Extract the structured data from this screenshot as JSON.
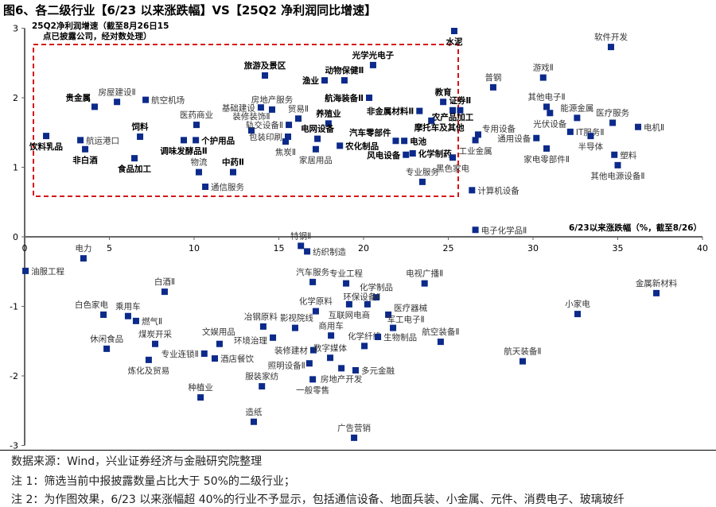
{
  "title": "图6、各二级行业【6/23 以来涨跌幅】VS【25Q2 净利润同比增速】",
  "footer": {
    "source": "数据来源：Wind，兴业证券经济与金融研究院整理",
    "note1": "注 1：筛选当前中报披露数量占比大于 50%的二级行业；",
    "note2": "注 2：为作图效果，6/23 以来涨幅超 40%的行业不予显示，包括通信设备、地面兵装、小金属、元件、消费电子、玻璃玻纤"
  },
  "chart_data": {
    "type": "scatter",
    "ylabel_line1": "25Q2净利润增速（截至8月26日15",
    "ylabel_line2": "点已披露公司，经对数处理）",
    "xlabel": "6/23以来涨跌幅（%，截至8/26）",
    "xlim": [
      0,
      40
    ],
    "ylim": [
      -3,
      3
    ],
    "xticks": [
      "0",
      "5",
      "10",
      "15",
      "20",
      "25",
      "30",
      "35",
      "40"
    ],
    "yticks": [
      "3",
      "2",
      "1",
      "0",
      "-1",
      "-2",
      "-3"
    ],
    "grid": false,
    "colors": {
      "marker": "#0b2a8a",
      "highlight_box": "#d61518"
    },
    "highlight_box": "dashed red rectangle around upper-left cluster",
    "points": [
      {
        "name": "饮料乳品",
        "x": 1.27,
        "y": 1.45,
        "pos": "b",
        "bold": true
      },
      {
        "name": "航运港口",
        "x": 3.29,
        "y": 1.39,
        "pos": "r",
        "bold": false
      },
      {
        "name": "非白酒",
        "x": 3.57,
        "y": 1.26,
        "pos": "b",
        "bold": true
      },
      {
        "name": "贵金属",
        "x": 4.13,
        "y": 1.87,
        "pos": "a",
        "bold": true
      },
      {
        "name": "房屋建设Ⅱ",
        "x": 5.45,
        "y": 1.94,
        "pos": "a",
        "bold": false
      },
      {
        "name": "航空机场",
        "x": 7.14,
        "y": 1.97,
        "pos": "r",
        "bold": false
      },
      {
        "name": "饲料",
        "x": 6.81,
        "y": 1.44,
        "pos": "a",
        "bold": true
      },
      {
        "name": "食品加工",
        "x": 6.48,
        "y": 1.13,
        "pos": "b",
        "bold": true
      },
      {
        "name": "调味发酵品Ⅱ",
        "x": 9.39,
        "y": 1.39,
        "pos": "b",
        "bold": true
      },
      {
        "name": "个护用品",
        "x": 10.1,
        "y": 1.39,
        "pos": "r",
        "bold": true
      },
      {
        "name": "医药商业",
        "x": 10.14,
        "y": 1.61,
        "pos": "a",
        "bold": false
      },
      {
        "name": "物流",
        "x": 10.28,
        "y": 0.93,
        "pos": "a",
        "bold": false
      },
      {
        "name": "中药Ⅱ",
        "x": 12.3,
        "y": 0.93,
        "pos": "a",
        "bold": true
      },
      {
        "name": "通信服务",
        "x": 10.66,
        "y": 0.72,
        "pos": "r",
        "bold": false
      },
      {
        "name": "旅游及景区",
        "x": 14.18,
        "y": 2.32,
        "pos": "a",
        "bold": true
      },
      {
        "name": "基础建设",
        "x": 13.94,
        "y": 1.86,
        "pos": "l",
        "bold": false
      },
      {
        "name": "房地产服务",
        "x": 14.6,
        "y": 1.83,
        "pos": "a",
        "bold": false
      },
      {
        "name": "装修装饰Ⅱ",
        "x": 13.38,
        "y": 1.53,
        "pos": "a",
        "bold": false
      },
      {
        "name": "轨交设备Ⅱ",
        "x": 15.59,
        "y": 1.61,
        "pos": "l",
        "bold": false
      },
      {
        "name": "包装印刷",
        "x": 15.54,
        "y": 1.44,
        "pos": "l",
        "bold": false
      },
      {
        "name": "焦炭Ⅱ",
        "x": 15.4,
        "y": 1.37,
        "pos": "b",
        "bold": false
      },
      {
        "name": "贸易Ⅱ",
        "x": 16.15,
        "y": 1.7,
        "pos": "a",
        "bold": false
      },
      {
        "name": "渔业",
        "x": 17.7,
        "y": 2.25,
        "pos": "l",
        "bold": true
      },
      {
        "name": "动物保健Ⅱ",
        "x": 18.87,
        "y": 2.25,
        "pos": "a",
        "bold": true
      },
      {
        "name": "光学光电子",
        "x": 20.56,
        "y": 2.47,
        "pos": "a",
        "bold": true
      },
      {
        "name": "航海装备Ⅱ",
        "x": 20.33,
        "y": 2.0,
        "pos": "l",
        "bold": true
      },
      {
        "name": "养殖业",
        "x": 17.93,
        "y": 1.63,
        "pos": "a",
        "bold": true
      },
      {
        "name": "电网设备",
        "x": 17.28,
        "y": 1.41,
        "pos": "a",
        "bold": true
      },
      {
        "name": "家居用品",
        "x": 17.18,
        "y": 1.26,
        "pos": "b",
        "bold": false
      },
      {
        "name": "农化制品",
        "x": 18.6,
        "y": 1.31,
        "pos": "a",
        "bold": true
      },
      {
        "name": "汽车零部件",
        "x": 21.9,
        "y": 1.38,
        "pos": "a",
        "bold": true
      },
      {
        "name": "电池",
        "x": 22.4,
        "y": 1.38,
        "pos": "r",
        "bold": true
      },
      {
        "name": "风电设备",
        "x": 22.5,
        "y": 1.18,
        "pos": "l",
        "bold": true
      },
      {
        "name": "化学制药",
        "x": 22.9,
        "y": 1.2,
        "pos": "r",
        "bold": true
      },
      {
        "name": "专业服务",
        "x": 23.47,
        "y": 0.79,
        "pos": "a",
        "bold": false
      },
      {
        "name": "非金属材料Ⅱ",
        "x": 23.3,
        "y": 1.81,
        "pos": "l",
        "bold": true
      },
      {
        "name": "教育",
        "x": 24.7,
        "y": 1.94,
        "pos": "a",
        "bold": true
      },
      {
        "name": "农产品加工",
        "x": 25.26,
        "y": 1.82,
        "pos": "b",
        "bold": true
      },
      {
        "name": "证券Ⅱ",
        "x": 25.7,
        "y": 1.82,
        "pos": "a",
        "bold": true
      },
      {
        "name": "摩托车及其他",
        "x": 24.0,
        "y": 1.67,
        "pos": "b",
        "bold": true
      },
      {
        "name": "水泥",
        "x": 25.35,
        "y": 2.96,
        "pos": "b",
        "bold": true
      },
      {
        "name": "黑色家电",
        "x": 25.26,
        "y": 1.14,
        "pos": "b",
        "bold": false
      },
      {
        "name": "计算机设备",
        "x": 26.4,
        "y": 0.67,
        "pos": "r",
        "bold": false
      },
      {
        "name": "电子化学品Ⅱ",
        "x": 26.6,
        "y": 0.1,
        "pos": "r",
        "bold": false
      },
      {
        "name": "专用设备",
        "x": 26.76,
        "y": 1.47,
        "pos": "r",
        "bold": false
      },
      {
        "name": "工业金属",
        "x": 26.6,
        "y": 1.39,
        "pos": "b",
        "bold": false
      },
      {
        "name": "普钢",
        "x": 27.65,
        "y": 2.15,
        "pos": "a",
        "bold": false
      },
      {
        "name": "游戏Ⅱ",
        "x": 30.6,
        "y": 2.29,
        "pos": "a",
        "bold": false
      },
      {
        "name": "软件开发",
        "x": 34.6,
        "y": 2.73,
        "pos": "a",
        "bold": false
      },
      {
        "name": "其他电子Ⅱ",
        "x": 30.8,
        "y": 1.87,
        "pos": "a",
        "bold": false
      },
      {
        "name": "光伏设备",
        "x": 31.0,
        "y": 1.78,
        "pos": "b",
        "bold": false
      },
      {
        "name": "能源金属",
        "x": 32.6,
        "y": 1.71,
        "pos": "a",
        "bold": false
      },
      {
        "name": "医疗服务",
        "x": 34.7,
        "y": 1.64,
        "pos": "a",
        "bold": false
      },
      {
        "name": "电机Ⅱ",
        "x": 36.2,
        "y": 1.58,
        "pos": "r",
        "bold": false
      },
      {
        "name": "IT服务Ⅱ",
        "x": 32.2,
        "y": 1.51,
        "pos": "r",
        "bold": false
      },
      {
        "name": "通用设备",
        "x": 30.2,
        "y": 1.42,
        "pos": "l",
        "bold": false
      },
      {
        "name": "半导体",
        "x": 33.4,
        "y": 1.45,
        "pos": "b",
        "bold": false
      },
      {
        "name": "家电零部件Ⅱ",
        "x": 30.8,
        "y": 1.27,
        "pos": "b",
        "bold": false
      },
      {
        "name": "塑料",
        "x": 34.8,
        "y": 1.18,
        "pos": "r",
        "bold": false
      },
      {
        "name": "其他电源设备Ⅱ",
        "x": 35.0,
        "y": 1.03,
        "pos": "b",
        "bold": false
      },
      {
        "name": "油服工程",
        "x": 0.05,
        "y": -0.49,
        "pos": "r",
        "bold": false
      },
      {
        "name": "电力",
        "x": 3.47,
        "y": -0.31,
        "pos": "a",
        "bold": false
      },
      {
        "name": "白酒Ⅱ",
        "x": 8.26,
        "y": -0.79,
        "pos": "a",
        "bold": false
      },
      {
        "name": "白色家电",
        "x": 4.65,
        "y": -1.12,
        "pos": "a",
        "bold": false
      },
      {
        "name": "乘用车",
        "x": 6.1,
        "y": -1.14,
        "pos": "a",
        "bold": false
      },
      {
        "name": "燃气Ⅱ",
        "x": 6.57,
        "y": -1.21,
        "pos": "r",
        "bold": false
      },
      {
        "name": "休闲食品",
        "x": 4.84,
        "y": -1.61,
        "pos": "a",
        "bold": false
      },
      {
        "name": "煤炭开采",
        "x": 7.7,
        "y": -1.54,
        "pos": "a",
        "bold": false
      },
      {
        "name": "炼化及贸易",
        "x": 7.32,
        "y": -1.77,
        "pos": "b",
        "bold": false
      },
      {
        "name": "专业连锁Ⅱ",
        "x": 10.6,
        "y": -1.68,
        "pos": "l",
        "bold": false
      },
      {
        "name": "文娱用品",
        "x": 11.5,
        "y": -1.54,
        "pos": "a",
        "bold": false
      },
      {
        "name": "酒店餐饮",
        "x": 11.22,
        "y": -1.75,
        "pos": "r",
        "bold": false
      },
      {
        "name": "种植业",
        "x": 10.38,
        "y": -2.31,
        "pos": "a",
        "bold": false
      },
      {
        "name": "造纸",
        "x": 13.52,
        "y": -2.66,
        "pos": "a",
        "bold": false
      },
      {
        "name": "特钢Ⅱ",
        "x": 16.3,
        "y": -0.13,
        "pos": "a",
        "bold": false
      },
      {
        "name": "纺织制造",
        "x": 16.67,
        "y": -0.21,
        "pos": "r",
        "bold": false
      },
      {
        "name": "汽车服务",
        "x": 17.0,
        "y": -0.65,
        "pos": "a",
        "bold": false
      },
      {
        "name": "专业工程",
        "x": 18.97,
        "y": -0.67,
        "pos": "a",
        "bold": false
      },
      {
        "name": "电视广播Ⅱ",
        "x": 23.6,
        "y": -0.67,
        "pos": "a",
        "bold": false
      },
      {
        "name": "化学制品",
        "x": 20.75,
        "y": -0.87,
        "pos": "a",
        "bold": false
      },
      {
        "name": "化学原料",
        "x": 17.18,
        "y": -1.07,
        "pos": "a",
        "bold": false
      },
      {
        "name": "互联网电商",
        "x": 19.15,
        "y": -0.97,
        "pos": "b",
        "bold": false
      },
      {
        "name": "环保设备Ⅱ",
        "x": 20.23,
        "y": -0.97,
        "pos": "r",
        "bold": false
      },
      {
        "name": "医疗器械",
        "x": 21.46,
        "y": -1.12,
        "pos": "r",
        "bold": false
      },
      {
        "name": "军工电子Ⅱ",
        "x": 21.74,
        "y": -1.31,
        "pos": "a",
        "bold": false
      },
      {
        "name": "航空装备Ⅱ",
        "x": 24.55,
        "y": -1.51,
        "pos": "a",
        "bold": false
      },
      {
        "name": "冶钢原料",
        "x": 14.08,
        "y": -1.29,
        "pos": "a",
        "bold": false
      },
      {
        "name": "影视院线",
        "x": 15.96,
        "y": -1.31,
        "pos": "a",
        "bold": false
      },
      {
        "name": "商用车",
        "x": 18.08,
        "y": -1.42,
        "pos": "a",
        "bold": false
      },
      {
        "name": "化学纤维",
        "x": 20.05,
        "y": -1.57,
        "pos": "a",
        "bold": false
      },
      {
        "name": "生物制品",
        "x": 20.85,
        "y": -1.44,
        "pos": "r",
        "bold": false
      },
      {
        "name": "环境治理",
        "x": 14.65,
        "y": -1.45,
        "pos": "l",
        "bold": false
      },
      {
        "name": "装修建材",
        "x": 17.04,
        "y": -1.63,
        "pos": "l",
        "bold": false
      },
      {
        "name": "数字媒体",
        "x": 18.03,
        "y": -1.74,
        "pos": "a",
        "bold": false
      },
      {
        "name": "照明设备Ⅱ",
        "x": 16.8,
        "y": -1.82,
        "pos": "l",
        "bold": false
      },
      {
        "name": "房地产开发",
        "x": 18.69,
        "y": -1.89,
        "pos": "b",
        "bold": false
      },
      {
        "name": "多元金融",
        "x": 19.53,
        "y": -1.92,
        "pos": "r",
        "bold": false
      },
      {
        "name": "一般零售",
        "x": 17.0,
        "y": -2.05,
        "pos": "b",
        "bold": false
      },
      {
        "name": "服装家纺",
        "x": 14.0,
        "y": -2.15,
        "pos": "a",
        "bold": false
      },
      {
        "name": "广告营销",
        "x": 19.44,
        "y": -2.89,
        "pos": "a",
        "bold": false
      },
      {
        "name": "金属新材料",
        "x": 37.28,
        "y": -0.81,
        "pos": "a",
        "bold": false
      },
      {
        "name": "小家电",
        "x": 32.63,
        "y": -1.11,
        "pos": "a",
        "bold": false
      },
      {
        "name": "航天装备Ⅱ",
        "x": 29.39,
        "y": -1.79,
        "pos": "a",
        "bold": false
      }
    ]
  }
}
